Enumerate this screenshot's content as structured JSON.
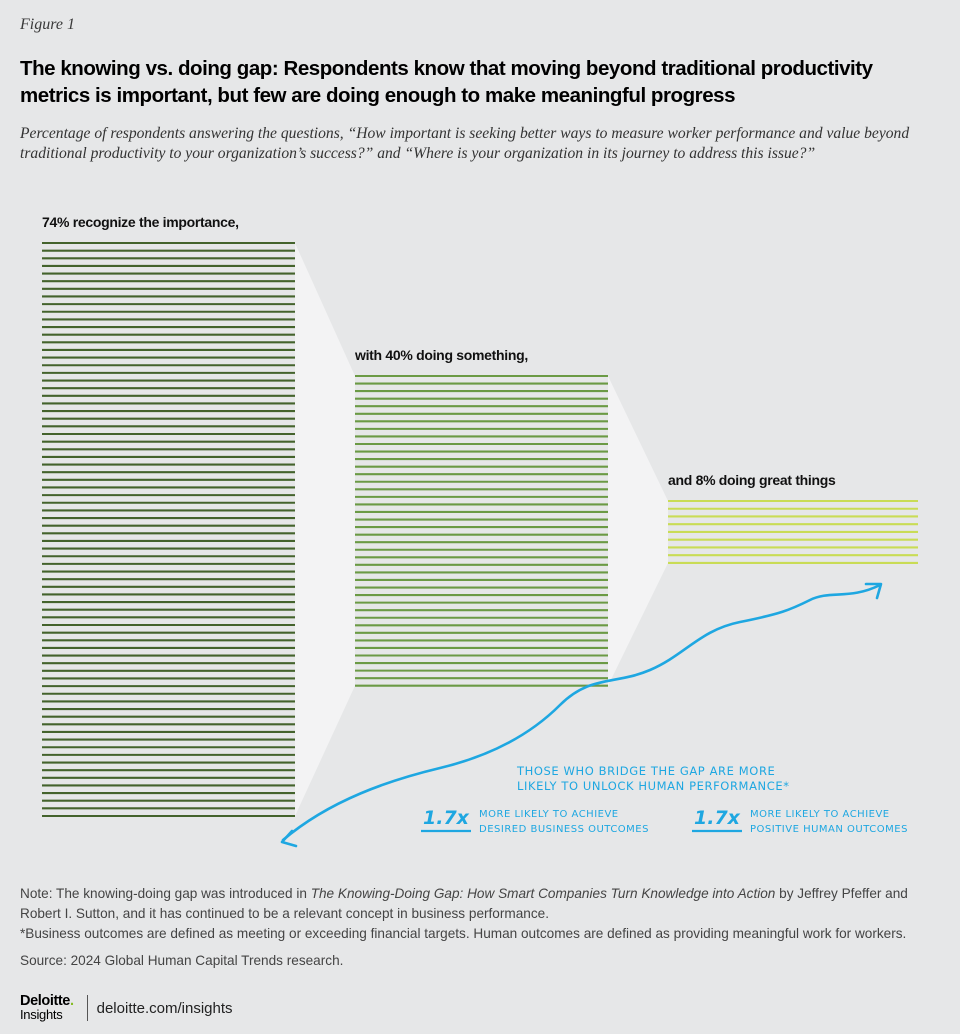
{
  "figure_label": "Figure 1",
  "title": "The knowing vs. doing gap: Respondents know that moving beyond traditional productivity metrics is important, but few are doing enough to make meaningful progress",
  "subtitle": "Percentage of respondents answering the questions, “How important is seeking better ways to measure worker performance and value beyond traditional productivity to your organization’s success?” and “Where is your organization in its journey to address this issue?”",
  "chart_data": {
    "type": "bar",
    "categories": [
      "74% recognize the importance,",
      "with 40% doing something,",
      "and 8% doing great things"
    ],
    "values": [
      74,
      40,
      8
    ],
    "unit": "%",
    "colors": [
      "#44632c",
      "#6b9a45",
      "#c9dc55"
    ],
    "callout": {
      "heading": "THOSE WHO BRIDGE THE GAP ARE MORE LIKELY TO UNLOCK HUMAN PERFORMANCE*",
      "stats": [
        {
          "value": "1.7x",
          "line1": "MORE LIKELY TO ACHIEVE",
          "line2": "DESIRED BUSINESS OUTCOMES"
        },
        {
          "value": "1.7x",
          "line1": "MORE LIKELY TO ACHIEVE",
          "line2": "POSITIVE HUMAN OUTCOMES"
        }
      ],
      "color": "#1ea7e1"
    }
  },
  "footer": {
    "note_prefix": "Note: The knowing-doing gap was introduced in ",
    "note_book": "The Knowing-Doing Gap: How Smart Companies Turn Knowledge into Action",
    "note_suffix": " by Jeffrey Pfeffer and Robert I. Sutton, and it has continued to be a relevant concept in business performance.",
    "definition": "*Business outcomes are defined as meeting or exceeding financial targets. Human outcomes are defined as providing meaningful work for workers.",
    "source": "Source: 2024 Global Human Capital Trends research."
  },
  "brand": {
    "logo_main": "Deloitte",
    "logo_dot": ".",
    "logo_sub": "Insights",
    "url": "deloitte.com/insights"
  }
}
